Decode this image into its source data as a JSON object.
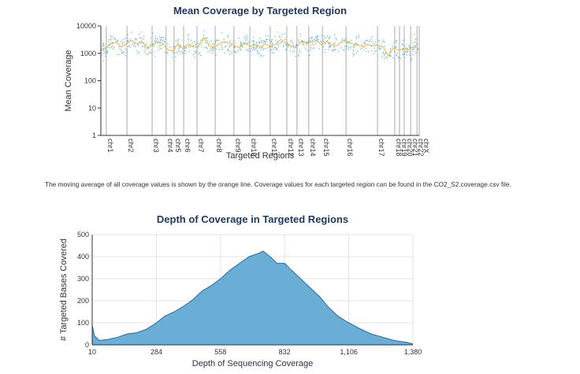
{
  "caption": "The moving average of all coverage values is shown by the orange line. Coverage values for each targeted region can be found in the CO2_S2.coverage.csv file.",
  "colors": {
    "scatter": "#5aaee0",
    "moving_average": "#f0b429",
    "area_fill": "#6aaed6",
    "area_line": "#1a6faf",
    "title": "#1f3864"
  },
  "chart_data": [
    {
      "type": "scatter",
      "title": "Mean Coverage by Targeted Region",
      "xlabel": "Targeted Regions",
      "ylabel": "Mean Coverage",
      "yscale": "log",
      "ylim": [
        1,
        10000
      ],
      "yticks": [
        "1",
        "10",
        "100",
        "1000",
        "10000"
      ],
      "chromosomes": [
        {
          "label": "chr1",
          "start": 17
        },
        {
          "label": "chr2",
          "start": 82
        },
        {
          "label": "chr3",
          "start": 161
        },
        {
          "label": "chr4",
          "start": 205
        },
        {
          "label": "chr5",
          "start": 230
        },
        {
          "label": "chr6",
          "start": 260
        },
        {
          "label": "chr7",
          "start": 302
        },
        {
          "label": "chr8",
          "start": 359
        },
        {
          "label": "chr9",
          "start": 418
        },
        {
          "label": "chr10",
          "start": 468
        },
        {
          "label": "chr11",
          "start": 532
        },
        {
          "label": "chr12",
          "start": 584
        },
        {
          "label": "chr13",
          "start": 616
        },
        {
          "label": "chr14",
          "start": 653
        },
        {
          "label": "chr15",
          "start": 696
        },
        {
          "label": "chr16",
          "start": 770
        },
        {
          "label": "chr17",
          "start": 869
        },
        {
          "label": "chr18",
          "start": 923
        },
        {
          "label": "chr19",
          "start": 938
        },
        {
          "label": "chr20",
          "start": 953
        },
        {
          "label": "chr21",
          "start": 973
        },
        {
          "label": "chr22",
          "start": 993
        },
        {
          "label": "chrX",
          "start": 1000
        }
      ],
      "moving_average": [
        1400,
        1600,
        2400,
        2600,
        1700,
        2300,
        3000,
        2200,
        2700,
        1500,
        2200,
        2500,
        2300,
        1400,
        1200,
        2300,
        1500,
        2200,
        1800,
        1700,
        3800,
        2000,
        1600,
        2200,
        2700,
        2400,
        1900,
        1600,
        2500,
        1800,
        2100,
        1700,
        2200,
        1800,
        2100,
        3200,
        2400,
        1900,
        1600,
        2700,
        2300,
        2600,
        3000,
        2000,
        2800,
        2100,
        1900,
        2900,
        2700,
        2200,
        2000,
        1800,
        2100,
        1900,
        2000,
        1700,
        800,
        1600,
        1300,
        1500,
        1400,
        1800,
        1400
      ]
    },
    {
      "type": "area",
      "title": "Depth of Coverage in Targeted Regions",
      "xlabel": "Depth of Sequencing Coverage",
      "ylabel": "# Targeted Bases Covered",
      "xlim": [
        10,
        1380
      ],
      "ylim": [
        0,
        500
      ],
      "xticks": [
        "10",
        "284",
        "558",
        "832",
        "1,106",
        "1,380"
      ],
      "yticks": [
        "0",
        "100",
        "200",
        "300",
        "400",
        "500"
      ],
      "grid": true,
      "x": [
        10,
        20,
        40,
        80,
        120,
        160,
        200,
        240,
        284,
        320,
        360,
        400,
        440,
        480,
        520,
        558,
        600,
        640,
        680,
        720,
        740,
        770,
        800,
        832,
        860,
        900,
        940,
        980,
        1020,
        1060,
        1106,
        1150,
        1200,
        1250,
        1300,
        1350,
        1380
      ],
      "y": [
        90,
        40,
        20,
        25,
        35,
        50,
        55,
        70,
        100,
        130,
        150,
        175,
        205,
        245,
        270,
        300,
        340,
        370,
        400,
        415,
        425,
        400,
        370,
        370,
        340,
        300,
        260,
        220,
        170,
        130,
        100,
        75,
        50,
        35,
        20,
        12,
        5
      ]
    }
  ]
}
